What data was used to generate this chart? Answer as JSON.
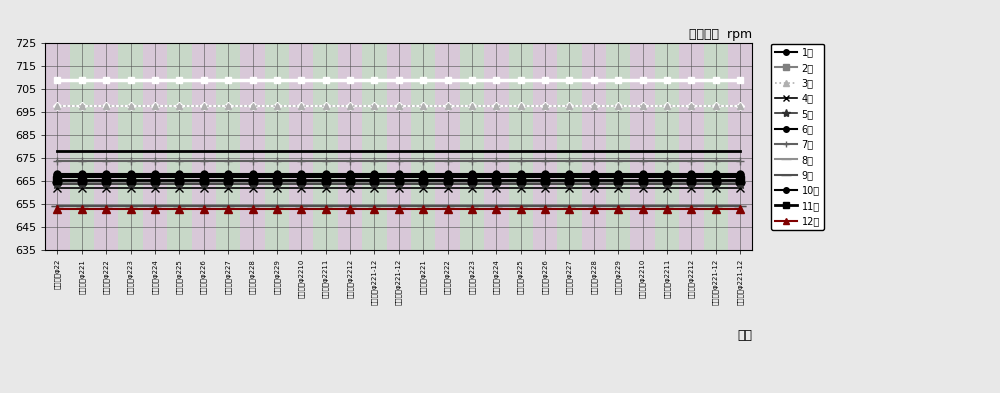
{
  "title": "电机转速  rpm",
  "xlabel": "时间",
  "ylim": [
    635,
    725
  ],
  "yticks": [
    635,
    645,
    655,
    665,
    675,
    685,
    695,
    705,
    715,
    725
  ],
  "plot_bg_color_a": "#d8c8d8",
  "plot_bg_color_b": "#c8d8c8",
  "grid_color": "#555555",
  "x_labels": [
    "尺寸钢管φ22",
    "成缩钢管φ221",
    "成缩钢管φ222",
    "成缩钢管φ223",
    "成缩钢管φ224",
    "成缩钢管φ225",
    "成缩钢管φ226",
    "成缩钢管φ227",
    "成缩钢管φ228",
    "成缩钢管φ229",
    "成缩钢管φ2210",
    "成缩钢管φ2211",
    "成缩钢管φ2212",
    "标准钢管φ221-12",
    "标准钢管φ221-12",
    "搜缩钢管φ221",
    "搜缩钢管φ222",
    "搜缩钢管φ223",
    "搜缩钢管φ224",
    "搜缩钢管φ225",
    "搜缩钢管φ226",
    "搜缩钢管φ227",
    "搜缩钢管φ228",
    "搜缩钢管φ229",
    "搜缩钢管φ2210",
    "搜缩钢管φ2211",
    "搜缩钢管φ2212",
    "尺寸钢管φ221-12",
    "尺寸钢管φ221-12"
  ],
  "series": [
    {
      "label": "1架",
      "value": 666.5,
      "color": "#000000",
      "marker": "o",
      "markersize": 5,
      "linestyle": "-",
      "linewidth": 1.5,
      "markerfacecolor": "#000000"
    },
    {
      "label": "2架",
      "value": 664.5,
      "color": "#808080",
      "marker": "s",
      "markersize": 5,
      "linestyle": "-",
      "linewidth": 1.5,
      "markerfacecolor": "#808080"
    },
    {
      "label": "3架",
      "value": 697.5,
      "color": "#b0b0b0",
      "marker": "^",
      "markersize": 5,
      "linestyle": ":",
      "linewidth": 1.2,
      "markerfacecolor": "#b0b0b0"
    },
    {
      "label": "4架",
      "value": 662.0,
      "color": "#000000",
      "marker": "x",
      "markersize": 6,
      "linestyle": "-",
      "linewidth": 1.2,
      "markerfacecolor": "#000000"
    },
    {
      "label": "5架",
      "value": 663.5,
      "color": "#303030",
      "marker": "*",
      "markersize": 7,
      "linestyle": "-",
      "linewidth": 1.2,
      "markerfacecolor": "#303030"
    },
    {
      "label": "6架",
      "value": 667.5,
      "color": "#000000",
      "marker": "o",
      "markersize": 5,
      "linestyle": "-",
      "linewidth": 1.5,
      "markerfacecolor": "#000000"
    },
    {
      "label": "7架",
      "value": 673.5,
      "color": "#606060",
      "marker": "+",
      "markersize": 6,
      "linestyle": "-",
      "linewidth": 1.5,
      "markerfacecolor": "#606060"
    },
    {
      "label": "8架",
      "value": 654.0,
      "color": "#909090",
      "marker": "_",
      "markersize": 8,
      "linestyle": "-",
      "linewidth": 1.5,
      "markerfacecolor": "#909090"
    },
    {
      "label": "9架",
      "value": 654.0,
      "color": "#505050",
      "marker": "_",
      "markersize": 8,
      "linestyle": "-",
      "linewidth": 1.5,
      "markerfacecolor": "#505050"
    },
    {
      "label": "10架",
      "value": 668.0,
      "color": "#000000",
      "marker": "o",
      "markersize": 5,
      "linestyle": "-",
      "linewidth": 1.5,
      "markerfacecolor": "#000000"
    },
    {
      "label": "11架",
      "value": 665.5,
      "color": "#000000",
      "marker": "s",
      "markersize": 6,
      "linestyle": "-",
      "linewidth": 2.0,
      "markerfacecolor": "#000000"
    },
    {
      "label": "12架",
      "value": 653.0,
      "color": "#800000",
      "marker": "^",
      "markersize": 6,
      "linestyle": "-",
      "linewidth": 1.5,
      "markerfacecolor": "#800000"
    }
  ],
  "extra_lines": [
    {
      "value": 709.0,
      "color": "white",
      "marker": "s",
      "markersize": 4,
      "linestyle": "-",
      "linewidth": 2.5
    },
    {
      "value": 697.5,
      "color": "white",
      "marker": "D",
      "markersize": 4,
      "linestyle": "-",
      "linewidth": 1.5
    },
    {
      "value": 678.0,
      "color": "#000000",
      "marker": null,
      "markersize": 0,
      "linestyle": "-",
      "linewidth": 2.0
    }
  ],
  "figsize": [
    10.0,
    3.93
  ],
  "dpi": 100
}
